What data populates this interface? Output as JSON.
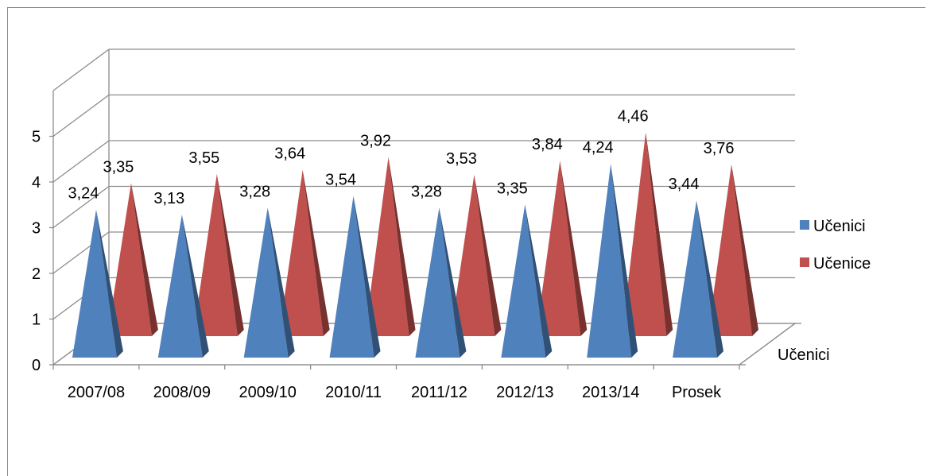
{
  "chart_data": {
    "type": "bar",
    "categories": [
      "2007/08",
      "2008/09",
      "2009/10",
      "2010/11",
      "2011/12",
      "2012/13",
      "2013/14",
      "Prosek"
    ],
    "series": [
      {
        "name": "Učenici",
        "values": [
          3.24,
          3.13,
          3.28,
          3.54,
          3.28,
          3.35,
          4.24,
          3.44
        ],
        "labels": [
          "3,24",
          "3,13",
          "3,28",
          "3,54",
          "3,28",
          "3,35",
          "4,24",
          "3,44"
        ],
        "color": "#4f81bd"
      },
      {
        "name": "Učenice",
        "values": [
          3.35,
          3.55,
          3.64,
          3.92,
          3.53,
          3.84,
          4.46,
          3.76
        ],
        "labels": [
          "3,35",
          "3,55",
          "3,64",
          "3,92",
          "3,53",
          "3,84",
          "4,46",
          "3,76"
        ],
        "color": "#c0504d"
      }
    ],
    "y_ticks": [
      "0",
      "1",
      "2",
      "3",
      "4",
      "5"
    ],
    "ylim": [
      0,
      6
    ],
    "depth_axis_label": "Učenici",
    "grid": true,
    "legend_position": "right",
    "bar_shape": "pyramid-3d"
  }
}
